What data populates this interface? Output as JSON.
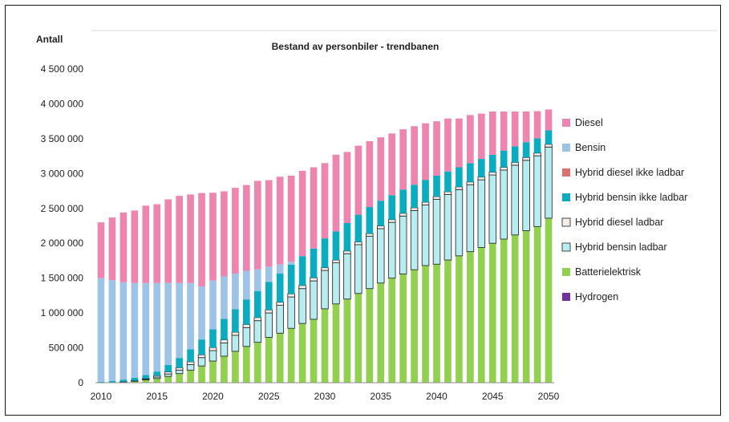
{
  "chart_data": {
    "type": "bar",
    "stacked": true,
    "title": "Bestand av personbiler - trendbanen",
    "ylabel": "Antall",
    "xlabel": "",
    "ylim": [
      0,
      4500000
    ],
    "yticks": [
      0,
      500000,
      1000000,
      1500000,
      2000000,
      2500000,
      3000000,
      3500000,
      4000000,
      4500000
    ],
    "ytick_labels": [
      "0",
      "500 000",
      "1 000 000",
      "1 500 000",
      "2 000 000",
      "2 500 000",
      "3 000 000",
      "3 500 000",
      "4 000 000",
      "4 500 000"
    ],
    "xtick_labels": [
      "2010",
      "2015",
      "2020",
      "2025",
      "2030",
      "2035",
      "2040",
      "2045",
      "2050"
    ],
    "grid": false,
    "legend_position": "right",
    "categories": [
      "2010",
      "2011",
      "2012",
      "2013",
      "2014",
      "2015",
      "2016",
      "2017",
      "2018",
      "2019",
      "2020",
      "2021",
      "2022",
      "2023",
      "2024",
      "2025",
      "2026",
      "2027",
      "2028",
      "2029",
      "2030",
      "2031",
      "2032",
      "2033",
      "2034",
      "2035",
      "2036",
      "2037",
      "2038",
      "2039",
      "2040",
      "2041",
      "2042",
      "2043",
      "2044",
      "2045",
      "2046",
      "2047",
      "2048",
      "2049",
      "2050"
    ],
    "series": [
      {
        "name": "Hydrogen",
        "color": "#7030a0",
        "outline": false,
        "values": [
          0,
          0,
          0,
          0,
          0,
          0,
          0,
          0,
          0,
          0,
          0,
          0,
          0,
          0,
          0,
          0,
          0,
          0,
          0,
          0,
          0,
          0,
          0,
          0,
          0,
          0,
          0,
          0,
          0,
          0,
          0,
          0,
          0,
          0,
          0,
          0,
          0,
          0,
          0,
          0,
          0
        ]
      },
      {
        "name": "Batterielektrisk",
        "color": "#92d050",
        "outline": false,
        "values": [
          2000,
          5000,
          10000,
          20000,
          40000,
          60000,
          90000,
          130000,
          180000,
          240000,
          310000,
          380000,
          450000,
          520000,
          580000,
          650000,
          710000,
          780000,
          850000,
          910000,
          1060000,
          1130000,
          1200000,
          1280000,
          1350000,
          1430000,
          1500000,
          1560000,
          1620000,
          1680000,
          1700000,
          1760000,
          1820000,
          1880000,
          1940000,
          2000000,
          2060000,
          2120000,
          2180000,
          2240000,
          2360000
        ]
      },
      {
        "name": "Hybrid bensin ladbar",
        "color": "#b7ecf1",
        "outline": true,
        "values": [
          0,
          0,
          2000,
          5000,
          10000,
          20000,
          35000,
          50000,
          80000,
          120000,
          150000,
          190000,
          230000,
          270000,
          310000,
          350000,
          400000,
          450000,
          500000,
          550000,
          550000,
          590000,
          650000,
          700000,
          750000,
          780000,
          800000,
          830000,
          850000,
          870000,
          930000,
          940000,
          950000,
          960000,
          970000,
          980000,
          990000,
          1000000,
          1010000,
          1015000,
          1020000
        ]
      },
      {
        "name": "Hybrid diesel ladbar",
        "color": "#f4ece6",
        "outline": true,
        "values": [
          0,
          0,
          2000,
          5000,
          10000,
          20000,
          30000,
          35000,
          40000,
          40000,
          45000,
          45000,
          45000,
          45000,
          45000,
          45000,
          45000,
          45000,
          45000,
          45000,
          40000,
          40000,
          40000,
          40000,
          40000,
          40000,
          40000,
          40000,
          40000,
          40000,
          40000,
          40000,
          40000,
          40000,
          40000,
          40000,
          40000,
          40000,
          40000,
          40000,
          40000
        ]
      },
      {
        "name": "Hybrid bensin ikke ladbar",
        "color": "#0bacc0",
        "outline": false,
        "values": [
          10000,
          20000,
          30000,
          40000,
          50000,
          60000,
          100000,
          140000,
          180000,
          220000,
          260000,
          300000,
          330000,
          360000,
          380000,
          400000,
          410000,
          420000,
          420000,
          420000,
          420000,
          410000,
          400000,
          390000,
          380000,
          360000,
          350000,
          340000,
          330000,
          320000,
          300000,
          290000,
          280000,
          270000,
          260000,
          250000,
          240000,
          230000,
          220000,
          210000,
          200000
        ]
      },
      {
        "name": "Hybrid diesel ikke ladbar",
        "color": "#e07070",
        "outline": false,
        "values": [
          0,
          0,
          0,
          0,
          0,
          0,
          0,
          0,
          0,
          0,
          0,
          0,
          0,
          0,
          0,
          0,
          0,
          0,
          0,
          0,
          0,
          0,
          0,
          0,
          0,
          0,
          0,
          0,
          0,
          0,
          0,
          0,
          0,
          0,
          0,
          0,
          0,
          0,
          0,
          0,
          0
        ]
      },
      {
        "name": "Bensin",
        "color": "#9dc3e6",
        "outline": false,
        "values": [
          1488000,
          1445000,
          1398000,
          1360000,
          1320000,
          1270000,
          1175000,
          1075000,
          950000,
          760000,
          700000,
          610000,
          510000,
          410000,
          310000,
          220000,
          130000,
          40000,
          0,
          0,
          0,
          0,
          0,
          0,
          0,
          0,
          0,
          0,
          0,
          0,
          0,
          0,
          0,
          0,
          0,
          0,
          0,
          0,
          0,
          0,
          0
        ]
      },
      {
        "name": "Diesel",
        "color": "#ee85b0",
        "outline": false,
        "values": [
          800000,
          900000,
          1000000,
          1040000,
          1110000,
          1130000,
          1200000,
          1250000,
          1270000,
          1340000,
          1260000,
          1220000,
          1230000,
          1230000,
          1270000,
          1240000,
          1260000,
          1235000,
          1225000,
          1165000,
          1080000,
          1100000,
          1020000,
          990000,
          945000,
          910000,
          885000,
          865000,
          840000,
          810000,
          780000,
          760000,
          700000,
          690000,
          650000,
          620000,
          560000,
          500000,
          440000,
          390000,
          300000
        ]
      }
    ],
    "legend_order": [
      "Diesel",
      "Bensin",
      "Hybrid diesel ikke ladbar",
      "Hybrid bensin ikke ladbar",
      "Hybrid diesel ladbar",
      "Hybrid bensin ladbar",
      "Batterielektrisk",
      "Hydrogen"
    ]
  }
}
